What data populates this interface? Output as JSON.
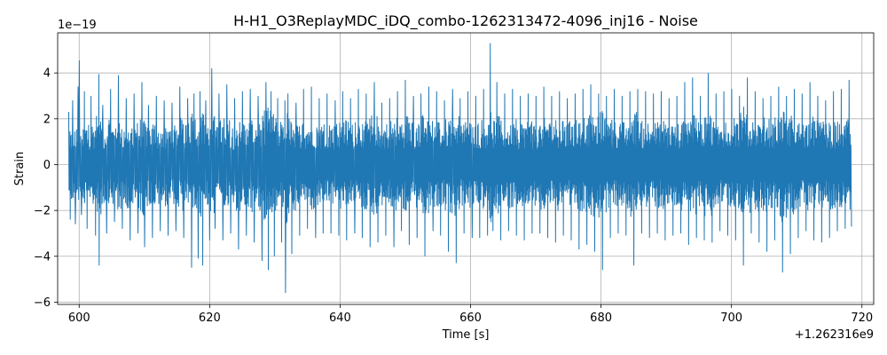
{
  "chart_data": {
    "type": "line",
    "title": "H-H1_O3ReplayMDC_iDQ_combo-1262313472-4096_inj16 - Noise",
    "xlabel": "Time [s]",
    "ylabel": "Strain",
    "x_offset_label": "+1.262316e9",
    "y_scale_label": "1e−19",
    "xlim": [
      596.7,
      721.8
    ],
    "ylim": [
      -6.1,
      5.75
    ],
    "x_ticks": [
      600,
      620,
      640,
      660,
      680,
      700,
      720
    ],
    "x_tick_labels": [
      "600",
      "620",
      "640",
      "660",
      "680",
      "700",
      "720"
    ],
    "y_ticks": [
      -6,
      -4,
      -2,
      0,
      2,
      4
    ],
    "y_tick_labels": [
      "−6",
      "−4",
      "−2",
      "0",
      "2",
      "4"
    ],
    "grid": true,
    "color": "#1f77b4",
    "series": [
      {
        "x_start": 598.4,
        "x_end": 718.4,
        "points": [
          [
            598.4,
            2.3
          ],
          [
            598.6,
            -2.4
          ],
          [
            599.0,
            2.8
          ],
          [
            599.4,
            -2.6
          ],
          [
            599.8,
            3.4
          ],
          [
            600.0,
            4.55
          ],
          [
            600.3,
            -2.2
          ],
          [
            600.8,
            3.2
          ],
          [
            601.2,
            -2.8
          ],
          [
            601.8,
            3.0
          ],
          [
            602.5,
            -3.1
          ],
          [
            603.0,
            3.95
          ],
          [
            603.0,
            -4.4
          ],
          [
            603.6,
            2.6
          ],
          [
            604.2,
            -3.0
          ],
          [
            604.8,
            3.3
          ],
          [
            605.4,
            -2.5
          ],
          [
            606.0,
            3.9
          ],
          [
            606.6,
            -2.8
          ],
          [
            607.2,
            2.9
          ],
          [
            607.8,
            -3.3
          ],
          [
            608.4,
            3.1
          ],
          [
            609.0,
            -3.0
          ],
          [
            609.6,
            3.6
          ],
          [
            610.0,
            -3.6
          ],
          [
            610.6,
            2.6
          ],
          [
            611.2,
            -3.2
          ],
          [
            611.8,
            3.0
          ],
          [
            612.4,
            -2.9
          ],
          [
            613.0,
            2.8
          ],
          [
            613.6,
            -3.1
          ],
          [
            614.2,
            2.7
          ],
          [
            614.8,
            -2.9
          ],
          [
            615.4,
            3.4
          ],
          [
            616.0,
            -3.2
          ],
          [
            616.6,
            2.9
          ],
          [
            617.2,
            -4.5
          ],
          [
            617.6,
            3.1
          ],
          [
            618.2,
            -4.1
          ],
          [
            618.5,
            3.2
          ],
          [
            618.9,
            -4.4
          ],
          [
            619.4,
            2.8
          ],
          [
            620.0,
            -3.3
          ],
          [
            620.3,
            4.2
          ],
          [
            620.8,
            -2.8
          ],
          [
            621.4,
            3.1
          ],
          [
            622.0,
            -3.3
          ],
          [
            622.6,
            3.5
          ],
          [
            623.2,
            -3.0
          ],
          [
            623.8,
            2.9
          ],
          [
            624.4,
            -3.7
          ],
          [
            625.0,
            3.2
          ],
          [
            625.6,
            -3.1
          ],
          [
            626.2,
            3.3
          ],
          [
            626.8,
            -3.4
          ],
          [
            627.4,
            3.0
          ],
          [
            628.0,
            -4.2
          ],
          [
            628.6,
            3.6
          ],
          [
            629.0,
            -4.6
          ],
          [
            629.4,
            3.2
          ],
          [
            629.9,
            -4.0
          ],
          [
            630.4,
            2.9
          ],
          [
            631.0,
            -3.4
          ],
          [
            631.5,
            2.8
          ],
          [
            631.6,
            -5.6
          ],
          [
            632.0,
            3.1
          ],
          [
            632.6,
            -3.9
          ],
          [
            633.2,
            2.7
          ],
          [
            633.8,
            -3.1
          ],
          [
            634.4,
            3.3
          ],
          [
            635.0,
            -2.8
          ],
          [
            635.6,
            3.4
          ],
          [
            636.2,
            -3.2
          ],
          [
            636.8,
            2.9
          ],
          [
            637.4,
            -3.0
          ],
          [
            638.0,
            3.1
          ],
          [
            638.6,
            -3.0
          ],
          [
            639.2,
            2.8
          ],
          [
            639.8,
            -3.1
          ],
          [
            640.4,
            3.2
          ],
          [
            641.0,
            -3.3
          ],
          [
            641.6,
            2.9
          ],
          [
            642.2,
            -3.0
          ],
          [
            642.8,
            3.3
          ],
          [
            643.4,
            -3.2
          ],
          [
            644.0,
            3.1
          ],
          [
            644.6,
            -3.6
          ],
          [
            645.2,
            3.6
          ],
          [
            645.8,
            -3.4
          ],
          [
            646.4,
            2.7
          ],
          [
            647.0,
            -3.1
          ],
          [
            647.6,
            2.9
          ],
          [
            648.2,
            -3.6
          ],
          [
            648.8,
            3.2
          ],
          [
            649.4,
            -2.9
          ],
          [
            650.0,
            3.7
          ],
          [
            650.6,
            -3.5
          ],
          [
            651.2,
            3.0
          ],
          [
            651.8,
            -3.2
          ],
          [
            652.4,
            3.1
          ],
          [
            653.0,
            -4.0
          ],
          [
            653.6,
            3.4
          ],
          [
            654.2,
            -2.9
          ],
          [
            654.8,
            3.2
          ],
          [
            655.4,
            -3.1
          ],
          [
            656.0,
            2.8
          ],
          [
            656.6,
            -3.8
          ],
          [
            657.2,
            3.3
          ],
          [
            657.8,
            -4.3
          ],
          [
            658.4,
            2.9
          ],
          [
            659.0,
            -3.0
          ],
          [
            659.6,
            3.2
          ],
          [
            660.2,
            -3.2
          ],
          [
            660.8,
            3.0
          ],
          [
            661.4,
            -3.2
          ],
          [
            662.0,
            3.3
          ],
          [
            662.6,
            -3.1
          ],
          [
            663.0,
            5.3
          ],
          [
            663.4,
            -2.9
          ],
          [
            664.0,
            3.6
          ],
          [
            664.6,
            -3.3
          ],
          [
            665.2,
            3.1
          ],
          [
            665.8,
            -2.9
          ],
          [
            666.4,
            3.3
          ],
          [
            667.0,
            -3.1
          ],
          [
            667.6,
            3.0
          ],
          [
            668.2,
            -3.3
          ],
          [
            668.8,
            3.1
          ],
          [
            669.4,
            -3.0
          ],
          [
            670.0,
            3.0
          ],
          [
            670.6,
            -3.0
          ],
          [
            671.2,
            3.4
          ],
          [
            671.8,
            -3.2
          ],
          [
            672.4,
            3.0
          ],
          [
            673.0,
            -3.4
          ],
          [
            673.6,
            3.2
          ],
          [
            674.2,
            -3.1
          ],
          [
            674.8,
            2.9
          ],
          [
            675.4,
            -3.3
          ],
          [
            676.0,
            3.1
          ],
          [
            676.6,
            -3.7
          ],
          [
            677.2,
            3.3
          ],
          [
            677.8,
            -3.5
          ],
          [
            678.4,
            3.5
          ],
          [
            679.0,
            -3.8
          ],
          [
            679.6,
            3.1
          ],
          [
            680.2,
            -4.6
          ],
          [
            680.8,
            3.0
          ],
          [
            681.4,
            -3.2
          ],
          [
            682.0,
            3.3
          ],
          [
            682.6,
            -3.0
          ],
          [
            683.2,
            3.0
          ],
          [
            683.8,
            -3.1
          ],
          [
            684.4,
            3.2
          ],
          [
            685.0,
            -4.4
          ],
          [
            685.6,
            3.3
          ],
          [
            686.2,
            -3.0
          ],
          [
            686.8,
            3.2
          ],
          [
            687.4,
            -3.2
          ],
          [
            688.0,
            3.1
          ],
          [
            688.6,
            -3.0
          ],
          [
            689.2,
            3.2
          ],
          [
            689.8,
            -3.3
          ],
          [
            690.4,
            2.9
          ],
          [
            691.0,
            -3.1
          ],
          [
            691.6,
            3.0
          ],
          [
            692.2,
            -3.0
          ],
          [
            692.8,
            3.6
          ],
          [
            693.4,
            -3.5
          ],
          [
            694.0,
            3.8
          ],
          [
            694.6,
            -3.2
          ],
          [
            695.2,
            3.0
          ],
          [
            695.8,
            -3.3
          ],
          [
            696.4,
            4.0
          ],
          [
            697.0,
            -3.4
          ],
          [
            697.6,
            3.1
          ],
          [
            698.2,
            -2.9
          ],
          [
            698.8,
            3.2
          ],
          [
            699.4,
            -3.1
          ],
          [
            700.0,
            3.3
          ],
          [
            700.6,
            -3.3
          ],
          [
            701.2,
            3.0
          ],
          [
            701.8,
            -4.4
          ],
          [
            702.4,
            3.8
          ],
          [
            703.0,
            -3.0
          ],
          [
            703.6,
            3.2
          ],
          [
            704.2,
            -3.4
          ],
          [
            704.8,
            2.9
          ],
          [
            705.4,
            -3.8
          ],
          [
            706.0,
            3.0
          ],
          [
            706.6,
            -3.3
          ],
          [
            707.2,
            3.4
          ],
          [
            707.8,
            -4.7
          ],
          [
            708.4,
            3.0
          ],
          [
            709.0,
            -3.9
          ],
          [
            709.6,
            3.3
          ],
          [
            710.2,
            -3.2
          ],
          [
            710.8,
            3.1
          ],
          [
            711.4,
            -2.9
          ],
          [
            712.0,
            3.6
          ],
          [
            712.6,
            -3.3
          ],
          [
            713.2,
            3.0
          ],
          [
            713.8,
            -3.4
          ],
          [
            714.4,
            2.8
          ],
          [
            715.0,
            -3.2
          ],
          [
            715.6,
            3.2
          ],
          [
            716.2,
            -2.9
          ],
          [
            716.8,
            3.3
          ],
          [
            717.4,
            -2.8
          ],
          [
            718.0,
            3.7
          ],
          [
            718.4,
            -2.7
          ]
        ]
      }
    ]
  }
}
